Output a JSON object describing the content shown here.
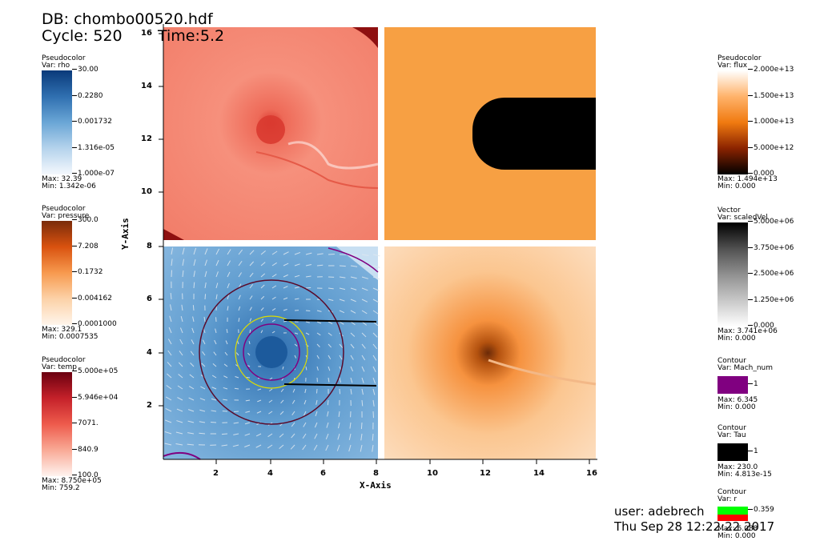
{
  "header": {
    "db": "DB: chombo00520.hdf",
    "cycle": "Cycle: 520",
    "time": "Time:5.2"
  },
  "axes": {
    "xlabel": "X-Axis",
    "ylabel": "Y-Axis",
    "xticks": [
      "2",
      "4",
      "6",
      "8",
      "10",
      "12",
      "14",
      "16"
    ],
    "yticks_top": [
      "16",
      "14",
      "12",
      "10"
    ],
    "yticks_bottom": [
      "8",
      "6",
      "4",
      "2"
    ]
  },
  "legends_left": [
    {
      "type": "Pseudocolor",
      "var": "Var: rho",
      "ticks": [
        "30.00",
        "0.2280",
        "0.001732",
        "1.316e-05",
        "1.000e-07"
      ],
      "max": "Max:  32.39",
      "min": "Min:  1.342e-06",
      "colors": [
        "#0a3a7a",
        "#2f6fb0",
        "#6aa6d6",
        "#b5d3ec",
        "#f4f8fd"
      ]
    },
    {
      "type": "Pseudocolor",
      "var": "Var: pressure",
      "ticks": [
        "300.0",
        "7.208",
        "0.1732",
        "0.004162",
        "0.0001000"
      ],
      "max": "Max:  329.1",
      "min": "Min:  0.0007535",
      "colors": [
        "#7a2b0a",
        "#d9520f",
        "#f79a4f",
        "#fcd2a8",
        "#fff5eb"
      ]
    },
    {
      "type": "Pseudocolor",
      "var": "Var: temp",
      "ticks": [
        "5.000e+05",
        "5.946e+04",
        "7071.",
        "840.9",
        "100.0"
      ],
      "max": "Max:  8.750e+05",
      "min": "Min:  759.2",
      "colors": [
        "#6b0010",
        "#c5212a",
        "#ee5b4c",
        "#f9aa96",
        "#fff3ef"
      ]
    }
  ],
  "legends_right": [
    {
      "type": "Pseudocolor",
      "var": "Var: flux",
      "ticks": [
        "2.000e+13",
        "1.500e+13",
        "1.000e+13",
        "5.000e+12",
        "0.000"
      ],
      "max": "Max:  1.494e+13",
      "min": "Min:  0.000",
      "colors": [
        "#ffffff",
        "#ffb36b",
        "#f07a10",
        "#8a2300",
        "#000000"
      ]
    },
    {
      "type": "Vector",
      "var": "Var: scaledVel",
      "ticks": [
        "5.000e+06",
        "3.750e+06",
        "2.500e+06",
        "1.250e+06",
        "0.000"
      ],
      "max": "Max:  3.741e+06",
      "min": "Min:  0.000",
      "colors": [
        "#000000",
        "#505050",
        "#909090",
        "#c8c8c8",
        "#ffffff"
      ]
    }
  ],
  "contours": [
    {
      "type": "Contour",
      "var": "Var: Mach_num",
      "level": "1",
      "max": "Max:  6.345",
      "min": "Min:  0.000",
      "color": "#800080"
    },
    {
      "type": "Contour",
      "var": "Var: Tau",
      "level": "1",
      "max": "Max:  230.0",
      "min": "Min:  4.813e-15",
      "color": "#000000"
    },
    {
      "type": "Contour",
      "var": "Var: r",
      "level": "0.359",
      "max": "Max:  6.088",
      "min": "Min:  0.000",
      "colors": [
        "#00ff00",
        "#ff0000"
      ]
    }
  ],
  "footer": {
    "user": "user: adebrech",
    "date": "Thu Sep 28 12:22:22 2017"
  }
}
